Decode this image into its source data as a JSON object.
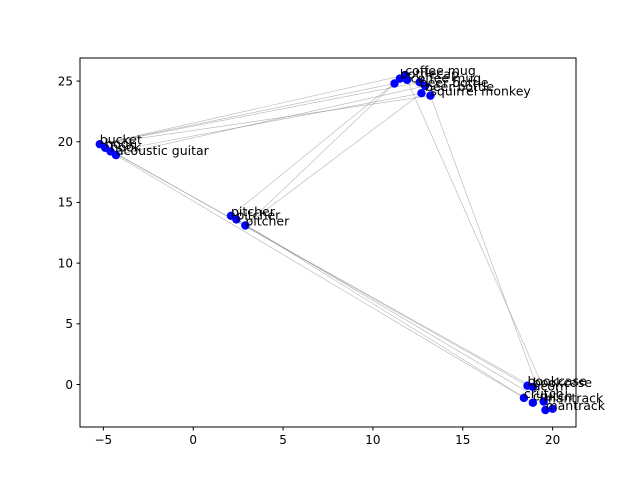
{
  "chart_data": {
    "type": "scatter",
    "title": "",
    "xlabel": "",
    "ylabel": "",
    "xlim": [
      -6.3,
      21.3
    ],
    "ylim": [
      -3.5,
      26.9
    ],
    "xticks": [
      -5,
      0,
      5,
      10,
      15,
      20
    ],
    "yticks": [
      0,
      5,
      10,
      15,
      20,
      25
    ],
    "grid": false,
    "point_color": "#0000ff",
    "line_color": "#808080",
    "points": [
      {
        "label": "coffee mug",
        "x": 11.8,
        "y": 25.5,
        "show_label": true
      },
      {
        "label": "",
        "x": 11.5,
        "y": 25.2,
        "show_label": false
      },
      {
        "label": "",
        "x": 11.2,
        "y": 24.8,
        "show_label": false
      },
      {
        "label": "",
        "x": 11.9,
        "y": 25.1,
        "show_label": false
      },
      {
        "label": "",
        "x": 12.6,
        "y": 24.9,
        "show_label": false
      },
      {
        "label": "",
        "x": 12.9,
        "y": 24.6,
        "show_label": false
      },
      {
        "label": "",
        "x": 12.7,
        "y": 24.0,
        "show_label": false
      },
      {
        "label": "squirrel monkey",
        "x": 13.2,
        "y": 23.8,
        "show_label": true
      },
      {
        "label": "bucket",
        "x": -5.2,
        "y": 19.8,
        "show_label": true
      },
      {
        "label": "",
        "x": -4.9,
        "y": 19.5,
        "show_label": false
      },
      {
        "label": "",
        "x": -4.6,
        "y": 19.2,
        "show_label": false
      },
      {
        "label": "acoustic guitar",
        "x": -4.3,
        "y": 18.9,
        "show_label": true
      },
      {
        "label": "pitcher",
        "x": 2.1,
        "y": 13.9,
        "show_label": true
      },
      {
        "label": "",
        "x": 2.4,
        "y": 13.6,
        "show_label": false
      },
      {
        "label": "pitcher",
        "x": 2.9,
        "y": 13.1,
        "show_label": true
      },
      {
        "label": "bookcase",
        "x": 18.6,
        "y": -0.1,
        "show_label": true
      },
      {
        "label": "",
        "x": 18.9,
        "y": -0.2,
        "show_label": false
      },
      {
        "label": "",
        "x": 18.4,
        "y": -1.1,
        "show_label": false
      },
      {
        "label": "",
        "x": 18.9,
        "y": -1.5,
        "show_label": false
      },
      {
        "label": "",
        "x": 19.5,
        "y": -1.4,
        "show_label": false
      },
      {
        "label": "",
        "x": 19.6,
        "y": -2.1,
        "show_label": false
      },
      {
        "label": "",
        "x": 20.0,
        "y": -2.0,
        "show_label": false
      }
    ],
    "annotations": [
      {
        "text": "coffee mug",
        "x": 11.8,
        "y": 25.5
      },
      {
        "text": "bottlecap",
        "x": 11.5,
        "y": 25.2
      },
      {
        "text": "coffee mug",
        "x": 12.1,
        "y": 24.9
      },
      {
        "text": "beer bottle",
        "x": 12.6,
        "y": 24.5
      },
      {
        "text": "beer bottle",
        "x": 12.9,
        "y": 24.2
      },
      {
        "text": "squirrel monkey",
        "x": 13.2,
        "y": 23.8
      },
      {
        "text": "bucket",
        "x": -5.2,
        "y": 19.8
      },
      {
        "text": "hook",
        "x": -4.9,
        "y": 19.5
      },
      {
        "text": "hook",
        "x": -4.6,
        "y": 19.2
      },
      {
        "text": "acoustic guitar",
        "x": -4.3,
        "y": 18.9
      },
      {
        "text": "pitcher",
        "x": 2.1,
        "y": 13.9
      },
      {
        "text": "pitcher",
        "x": 2.4,
        "y": 13.6
      },
      {
        "text": "pitcher",
        "x": 2.9,
        "y": 13.1
      },
      {
        "text": "bookcase",
        "x": 18.6,
        "y": -0.1
      },
      {
        "text": "bookcase",
        "x": 18.9,
        "y": -0.2
      },
      {
        "text": "acorn",
        "x": 18.9,
        "y": -0.5
      },
      {
        "text": "crutch",
        "x": 18.4,
        "y": -1.1
      },
      {
        "text": "crutch",
        "x": 18.9,
        "y": -1.3
      },
      {
        "text": "mantrack",
        "x": 19.5,
        "y": -1.5
      },
      {
        "text": "mantrack",
        "x": 19.6,
        "y": -2.1
      }
    ],
    "edges": [
      [
        8,
        0
      ],
      [
        8,
        2
      ],
      [
        8,
        4
      ],
      [
        8,
        7
      ],
      [
        11,
        5
      ],
      [
        10,
        6
      ],
      [
        12,
        1
      ],
      [
        14,
        2
      ],
      [
        14,
        6
      ],
      [
        8,
        15
      ],
      [
        9,
        16
      ],
      [
        11,
        17
      ],
      [
        12,
        18
      ],
      [
        13,
        19
      ],
      [
        7,
        20
      ],
      [
        3,
        21
      ]
    ]
  }
}
